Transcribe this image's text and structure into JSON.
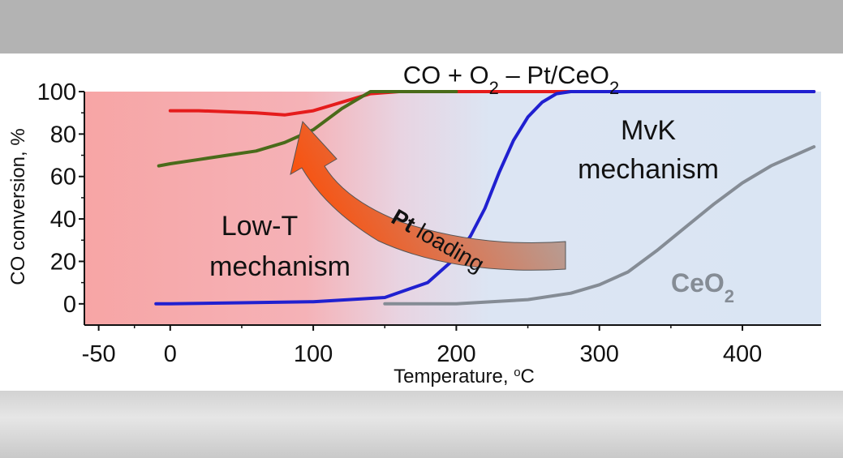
{
  "chart_data": {
    "type": "line",
    "title": "CO + O₂ – Pt/CeO₂",
    "title_parts": {
      "t1": "CO + O",
      "s1": "2",
      "t2": " – Pt/CeO",
      "s2": "2"
    },
    "xlabel": "Temperature, °C",
    "xlabel_parts": {
      "t1": "Temperature, ",
      "sup": "o",
      "t2": "C"
    },
    "ylabel": "CO conversion, %",
    "xlim": [
      -60,
      455
    ],
    "ylim": [
      -10,
      100
    ],
    "xticks": [
      -50,
      0,
      100,
      200,
      300,
      400
    ],
    "yticks": [
      0,
      20,
      40,
      60,
      80,
      100
    ],
    "grid": false,
    "background_regions": [
      {
        "label": "low-T",
        "x_range": [
          -60,
          150
        ],
        "color": "#f7a6a6"
      },
      {
        "label": "MvK",
        "x_range": [
          150,
          455
        ],
        "color": "#dbe6f4"
      }
    ],
    "series": [
      {
        "color": "#e51c1c",
        "x": [
          0,
          20,
          40,
          60,
          80,
          100,
          120,
          140,
          160,
          200,
          250,
          300,
          450
        ],
        "values": [
          91,
          91,
          90.5,
          90,
          89,
          91,
          95,
          99,
          100,
          100,
          100,
          100,
          100
        ]
      },
      {
        "color": "#4a6b1a",
        "x": [
          -8,
          0,
          20,
          40,
          60,
          80,
          100,
          120,
          140,
          160,
          200
        ],
        "values": [
          65,
          66,
          68,
          70,
          72,
          76,
          82,
          92,
          100,
          100,
          100
        ]
      },
      {
        "color": "#2020d0",
        "x": [
          -10,
          0,
          50,
          100,
          150,
          180,
          200,
          210,
          220,
          230,
          240,
          250,
          260,
          270,
          280,
          300,
          450
        ],
        "values": [
          0,
          0,
          0.5,
          1,
          3,
          10,
          22,
          32,
          45,
          62,
          77,
          88,
          95,
          99,
          100,
          100,
          100
        ]
      },
      {
        "name": "CeO₂",
        "color": "#858c95",
        "x": [
          150,
          200,
          250,
          280,
          300,
          320,
          340,
          360,
          380,
          400,
          420,
          450
        ],
        "values": [
          0,
          0,
          2,
          5,
          9,
          15,
          25,
          36,
          47,
          57,
          65,
          74
        ]
      }
    ],
    "annotations": {
      "mvk": [
        "MvK",
        "mechanism"
      ],
      "lowt": [
        "Low-T",
        "mechanism"
      ],
      "arrow_bold": "Pt",
      "arrow_rest": " loading",
      "ceo2": {
        "t": "CeO",
        "s": "2"
      }
    }
  }
}
